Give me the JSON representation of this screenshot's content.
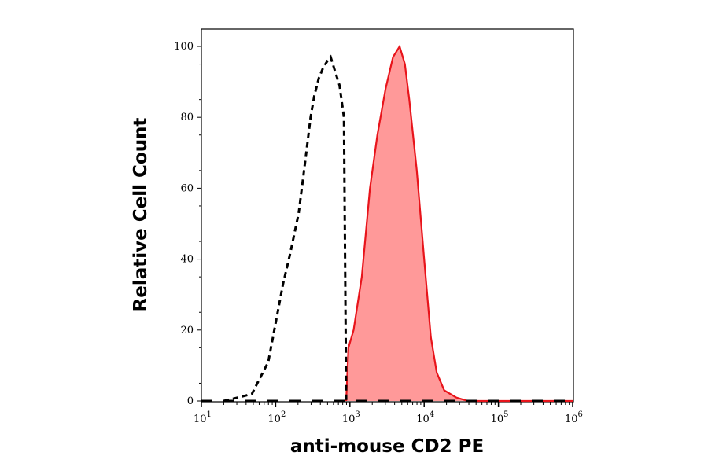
{
  "chart_data": {
    "type": "area",
    "title": "",
    "xlabel": "anti-mouse CD2 PE",
    "ylabel": "Relative Cell Count",
    "x_scale": "log",
    "xlim": [
      10,
      1000000
    ],
    "ylim": [
      0,
      100
    ],
    "x_ticks": [
      {
        "base": "10",
        "exp": "1"
      },
      {
        "base": "10",
        "exp": "2"
      },
      {
        "base": "10",
        "exp": "3"
      },
      {
        "base": "10",
        "exp": "4"
      },
      {
        "base": "10",
        "exp": "5"
      },
      {
        "base": "10",
        "exp": "6"
      }
    ],
    "y_ticks": [
      "0",
      "20",
      "40",
      "60",
      "80",
      "100"
    ],
    "grid": false,
    "series": [
      {
        "style": "dashed-line",
        "color": "#000000",
        "x_log10": [
          1.3,
          1.5,
          1.68,
          1.9,
          2.0,
          2.1,
          2.2,
          2.31,
          2.4,
          2.47,
          2.52,
          2.58,
          2.64,
          2.7,
          2.74,
          2.8,
          2.86,
          2.92,
          2.95
        ],
        "y": [
          0,
          1,
          2,
          11,
          22,
          33,
          42,
          53,
          68,
          80,
          86,
          91,
          94,
          96,
          97,
          93,
          89,
          80,
          0
        ]
      },
      {
        "style": "filled",
        "color": "#e8141b",
        "fill": "#ff9999",
        "x_log10": [
          2.95,
          2.98,
          3.05,
          3.16,
          3.27,
          3.37,
          3.48,
          3.58,
          3.67,
          3.74,
          3.8,
          3.9,
          4.0,
          4.09,
          4.17,
          4.27,
          4.43,
          4.59,
          6.0
        ],
        "y": [
          0,
          15,
          20,
          35,
          60,
          75,
          88,
          97,
          100,
          95,
          85,
          65,
          40,
          18,
          8,
          3,
          1,
          0,
          0
        ]
      }
    ]
  }
}
